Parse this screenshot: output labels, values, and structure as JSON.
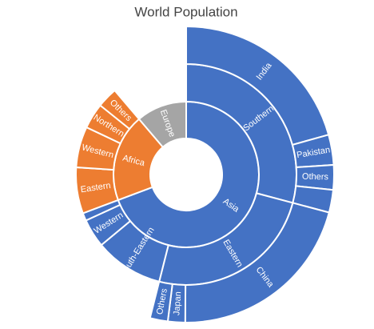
{
  "chart_data": {
    "type": "sunburst",
    "title": "World Population",
    "nodes": [
      {
        "name": "Asia",
        "value": 4626,
        "color": "#4472c4",
        "children": [
          {
            "name": "Southern",
            "value": 1945,
            "children": [
              {
                "name": "India",
                "value": 1380
              },
              {
                "name": "Pakistan",
                "value": 220
              },
              {
                "name": "Others",
                "value": 180
              },
              {
                "name": null,
                "value": 165
              }
            ]
          },
          {
            "name": "Eastern",
            "value": 1656,
            "children": [
              {
                "name": "China",
                "value": 1400
              },
              {
                "name": "Japan",
                "value": 126
              },
              {
                "name": "Others",
                "value": 130
              }
            ]
          },
          {
            "name": "South-Eastern",
            "value": 670
          },
          {
            "name": "Western",
            "value": 280
          },
          {
            "name": null,
            "value": 75
          }
        ]
      },
      {
        "name": "Africa",
        "value": 1300,
        "color": "#ed7d31",
        "children": [
          {
            "name": "Eastern",
            "value": 450
          },
          {
            "name": "Western",
            "value": 400
          },
          {
            "name": "Northern",
            "value": 250
          },
          {
            "name": "Others",
            "value": 200
          }
        ]
      },
      {
        "name": "Europe",
        "value": 750,
        "color": "#a5a5a5"
      }
    ]
  }
}
